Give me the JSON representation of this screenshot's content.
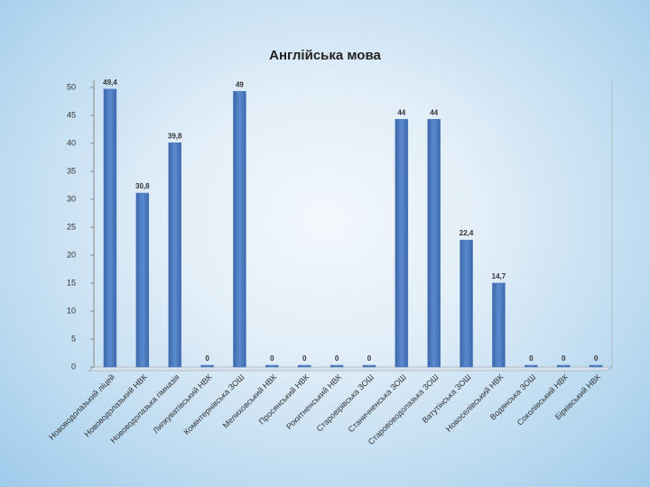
{
  "chart_data": {
    "type": "bar",
    "title": "Англійська мова",
    "categories": [
      "Нововодолазький ліцей",
      "Нововодолазький НВК",
      "Нововодолазька гімназія",
      "Липкуватівський НВК",
      "Комінтернівська ЗОШ",
      "Мелиховський НВК",
      "Просянський НВК",
      "Рокитненський НВК",
      "Старовірівська ЗОШ",
      "Станичненська ЗОШ",
      "Старововодолазька ЗОШ",
      "Ватутінська ЗОШ",
      "Новоселівський НВК",
      "Водянська ЗОШ",
      "Соколівський НВК",
      "Бірківський НВК"
    ],
    "values": [
      49.4,
      30.8,
      39.8,
      0,
      49,
      0,
      0,
      0,
      0,
      44,
      44,
      22.4,
      14.7,
      0,
      0,
      0
    ],
    "value_labels": [
      "49,4",
      "30,8",
      "39,8",
      "0",
      "49",
      "0",
      "0",
      "0",
      "0",
      "44",
      "44",
      "22,4",
      "14,7",
      "0",
      "0",
      "0"
    ],
    "color": "#4f7cc0",
    "ylim": [
      0,
      50
    ],
    "yticks": [
      0,
      5,
      10,
      15,
      20,
      25,
      30,
      35,
      40,
      45,
      50
    ],
    "grid": false
  }
}
